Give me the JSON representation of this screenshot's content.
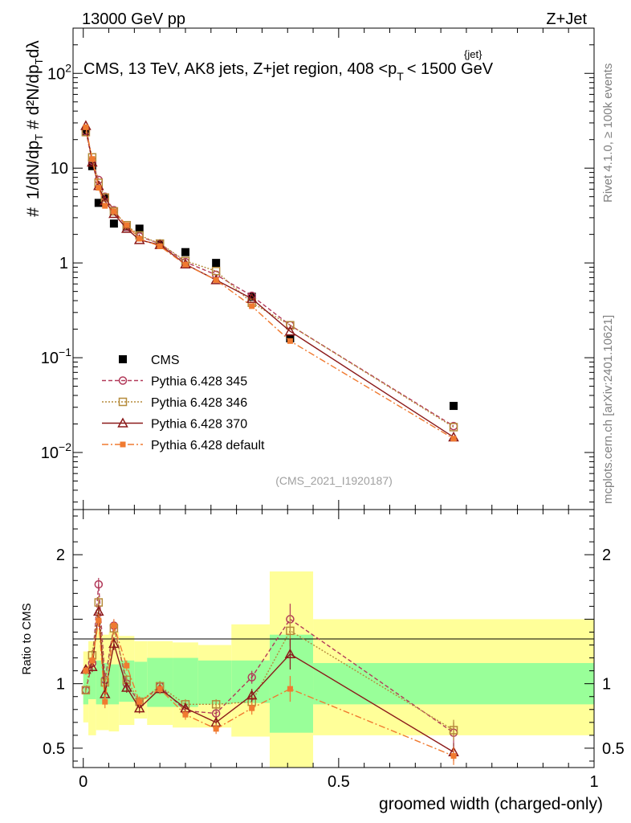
{
  "header": {
    "left": "13000 GeV pp",
    "right": "Z+Jet"
  },
  "side_labels": {
    "rivet": "Rivet 4.1.0, ≥ 100k events",
    "mcplots": "mcplots.cern.ch [arXiv:2401.10621]"
  },
  "chart_data": {
    "type": "scatter",
    "title": "CMS, 13 TeV, AK8 jets, Z+jet region, 408 <p_T^{jet}< 1500 GeV",
    "title_parts": {
      "before": "CMS, 13 TeV, AK8 jets, Z+jet region, 408 <p",
      "sup": "{jet}",
      "sub": "T",
      "after": "< 1500 GeV"
    },
    "analysis_id": "(CMS_2021_I1920187)",
    "xlabel": "groomed width (charged-only)",
    "ylabel_main": "1/dN/dp_T # d²N/(dp_T dλ)",
    "ylabel_ratio": "Ratio to CMS",
    "xlim": [
      -0.02,
      1.0
    ],
    "ylim_main": [
      0.0025,
      300
    ],
    "ylim_ratio": [
      0.35,
      2.35
    ],
    "x_ticks": [
      "0",
      "0.5",
      "1"
    ],
    "x_tick_values": [
      0,
      0.5,
      1
    ],
    "y_ticks_main": [
      {
        "value": 0.01,
        "base": "10",
        "exp": "−2"
      },
      {
        "value": 0.1,
        "base": "10",
        "exp": "−1"
      },
      {
        "value": 1,
        "base": "1",
        "exp": ""
      },
      {
        "value": 10,
        "base": "10",
        "exp": ""
      },
      {
        "value": 100,
        "base": "10",
        "exp": "2"
      }
    ],
    "y_ticks_ratio": [
      {
        "value": 0.5,
        "label": "0.5"
      },
      {
        "value": 1,
        "label": "1"
      },
      {
        "value": 2,
        "label": "2"
      }
    ],
    "x": [
      0.005,
      0.0175,
      0.03,
      0.0425,
      0.06,
      0.085,
      0.11,
      0.15,
      0.2,
      0.26,
      0.33,
      0.405,
      0.725
    ],
    "x_edges": [
      0,
      0.01,
      0.025,
      0.035,
      0.05,
      0.07,
      0.1,
      0.125,
      0.175,
      0.225,
      0.29,
      0.365,
      0.45,
      1.0
    ],
    "ratio_band_green": [
      [
        0.84,
        1.12
      ],
      [
        0.88,
        1.12
      ],
      [
        0.84,
        1.18
      ],
      [
        0.84,
        1.16
      ],
      [
        0.84,
        1.15
      ],
      [
        0.86,
        1.18
      ],
      [
        0.88,
        1.17
      ],
      [
        0.82,
        1.2
      ],
      [
        0.82,
        1.2
      ],
      [
        0.84,
        1.18
      ],
      [
        0.85,
        1.18
      ],
      [
        0.62,
        1.38
      ],
      [
        0.84,
        1.16
      ]
    ],
    "ratio_band_yellow": [
      [
        0.7,
        1.25
      ],
      [
        0.6,
        1.33
      ],
      [
        0.64,
        1.42
      ],
      [
        0.64,
        1.38
      ],
      [
        0.63,
        1.4
      ],
      [
        0.68,
        1.37
      ],
      [
        0.73,
        1.33
      ],
      [
        0.68,
        1.33
      ],
      [
        0.66,
        1.32
      ],
      [
        0.66,
        1.3
      ],
      [
        0.59,
        1.46
      ],
      [
        0.35,
        1.87
      ],
      [
        0.6,
        1.5
      ]
    ],
    "series": [
      {
        "name": "CMS",
        "color": "#000000",
        "style": "data",
        "values": [
          24.0,
          10.5,
          4.3,
          4.9,
          2.6,
          2.4,
          2.3,
          1.6,
          1.3,
          1.0,
          0.44,
          0.16,
          0.031
        ],
        "ratio": null
      },
      {
        "name": "Pythia 6.428 345",
        "color": "#b23a5a",
        "style": "circle-dashed",
        "values": [
          24.5,
          12.0,
          7.5,
          5.0,
          3.6,
          2.4,
          1.9,
          1.6,
          1.02,
          0.75,
          0.45,
          0.22,
          0.019
        ],
        "ratio": [
          0.95,
          1.16,
          1.77,
          1.03,
          1.45,
          1.0,
          0.85,
          0.98,
          0.79,
          0.77,
          1.05,
          1.5,
          0.62
        ],
        "ratio_err": [
          0.03,
          0.04,
          0.05,
          0.05,
          0.05,
          0.04,
          0.04,
          0.04,
          0.04,
          0.04,
          0.05,
          0.12,
          0.08
        ]
      },
      {
        "name": "Pythia 6.428 346",
        "color": "#b58a3a",
        "style": "square-dotted",
        "values": [
          24.0,
          13.0,
          7.0,
          4.9,
          3.5,
          2.5,
          1.95,
          1.6,
          1.05,
          0.82,
          0.38,
          0.22,
          0.0185
        ],
        "ratio": [
          0.95,
          1.22,
          1.63,
          1.01,
          1.43,
          1.03,
          0.86,
          0.98,
          0.84,
          0.84,
          0.86,
          1.41,
          0.64
        ],
        "ratio_err": [
          0.03,
          0.04,
          0.05,
          0.05,
          0.05,
          0.04,
          0.04,
          0.04,
          0.04,
          0.04,
          0.05,
          0.12,
          0.08
        ]
      },
      {
        "name": "Pythia 6.428 370",
        "color": "#8b1a1a",
        "style": "triangle-solid",
        "values": [
          28.0,
          11.5,
          6.5,
          4.5,
          3.3,
          2.3,
          1.75,
          1.55,
          0.97,
          0.66,
          0.42,
          0.19,
          0.0145
        ],
        "ratio": [
          1.11,
          1.13,
          1.56,
          0.92,
          1.31,
          0.97,
          0.81,
          0.96,
          0.81,
          0.7,
          0.91,
          1.23,
          0.47
        ],
        "ratio_err": [
          0.03,
          0.04,
          0.05,
          0.05,
          0.05,
          0.04,
          0.04,
          0.04,
          0.04,
          0.04,
          0.05,
          0.12,
          0.07
        ]
      },
      {
        "name": "Pythia 6.428 default",
        "color": "#f07a30",
        "style": "filled-square-dashdot",
        "values": [
          27.0,
          12.5,
          6.2,
          4.0,
          3.5,
          2.5,
          1.8,
          1.5,
          0.96,
          0.66,
          0.35,
          0.15,
          0.014
        ],
        "ratio": [
          1.1,
          1.18,
          1.49,
          0.86,
          1.45,
          1.14,
          0.86,
          0.96,
          0.76,
          0.65,
          0.81,
          0.96,
          0.44
        ],
        "ratio_err": [
          0.03,
          0.04,
          0.05,
          0.05,
          0.05,
          0.04,
          0.04,
          0.04,
          0.04,
          0.04,
          0.05,
          0.1,
          0.07
        ]
      }
    ]
  }
}
